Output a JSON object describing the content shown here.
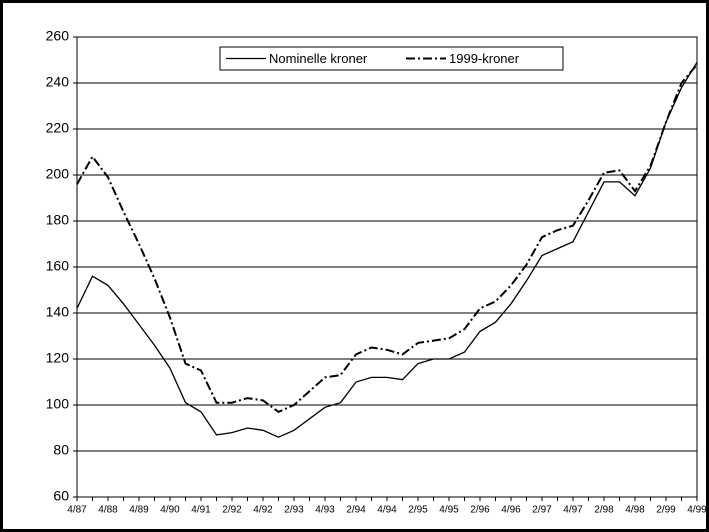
{
  "chart_data": {
    "type": "line",
    "categories": [
      "4/87",
      null,
      "4/88",
      null,
      "4/89",
      null,
      "4/90",
      null,
      "4/91",
      null,
      "2/92",
      null,
      "4/92",
      null,
      "2/93",
      null,
      "4/93",
      null,
      "2/94",
      null,
      "4/94",
      null,
      "2/95",
      null,
      "4/95",
      null,
      "2/96",
      null,
      "4/96",
      null,
      "2/97",
      null,
      "4/97",
      null,
      "2/98",
      null,
      "4/98",
      null,
      "2/99",
      null,
      "4/99"
    ],
    "series": [
      {
        "name": "Nominelle kroner",
        "color": "#000000",
        "dash": "solid",
        "values": [
          142,
          156,
          152,
          144,
          135,
          126,
          116,
          101,
          97,
          87,
          88,
          90,
          89,
          86,
          89,
          94,
          99,
          101,
          110,
          112,
          112,
          111,
          118,
          120,
          120,
          123,
          132,
          136,
          144,
          154,
          165,
          168,
          171,
          184,
          197,
          197,
          191,
          203,
          223,
          238,
          249
        ]
      },
      {
        "name": "1999-kroner",
        "color": "#000000",
        "dash": "dash-dot",
        "values": [
          196,
          208,
          199,
          184,
          170,
          155,
          138,
          118,
          115,
          101,
          101,
          103,
          102,
          97,
          100,
          106,
          112,
          113,
          122,
          125,
          124,
          122,
          127,
          128,
          129,
          133,
          142,
          145,
          152,
          161,
          173,
          176,
          178,
          189,
          201,
          202,
          193,
          204,
          223,
          240,
          248
        ]
      }
    ],
    "ylim": [
      60,
      260
    ],
    "yticks": [
      60,
      80,
      100,
      120,
      140,
      160,
      180,
      200,
      220,
      240,
      260
    ],
    "grid": true,
    "legend": "top"
  }
}
